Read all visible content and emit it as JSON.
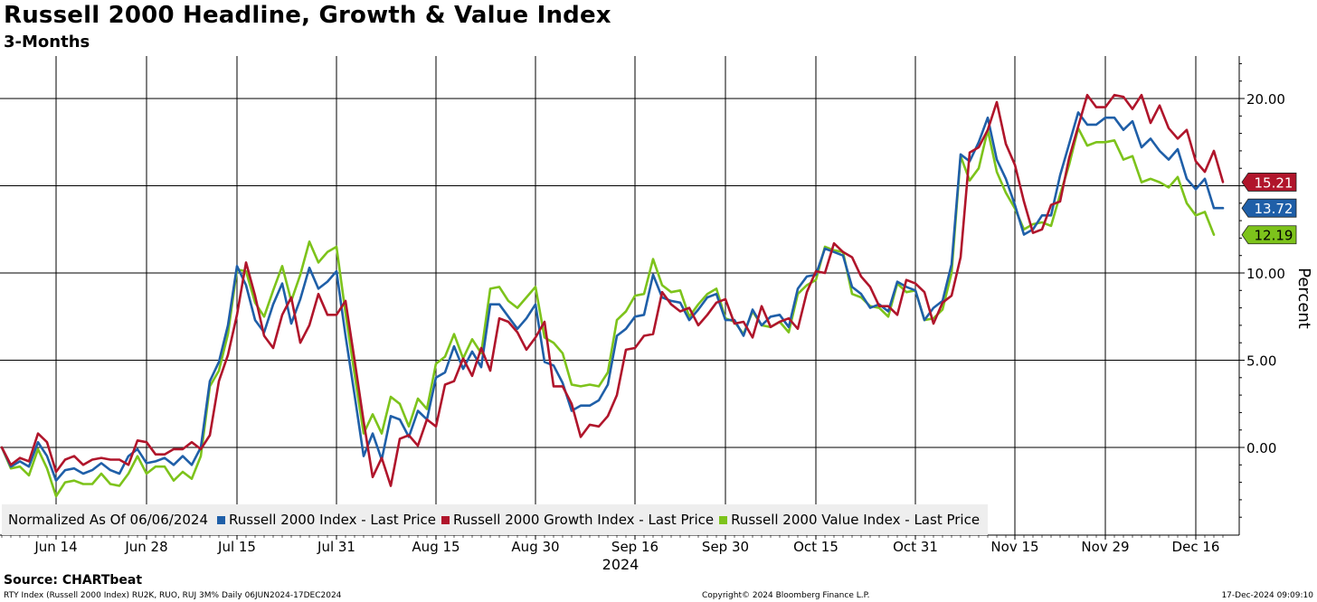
{
  "header": {
    "title": "Russell 2000 Headline, Growth & Value Index",
    "subtitle": "3-Months"
  },
  "footer": {
    "source": "Source: CHARTbeat",
    "ticker_line": "RTY Index (Russell 2000 Index) RU2K, RUO, RUJ 3M% Daily 06JUN2024-17DEC2024",
    "copyright": "Copyright© 2024 Bloomberg Finance L.P.",
    "timestamp": "17-Dec-2024 09:09:10"
  },
  "legend": {
    "title": "Normalized As Of 06/06/2024"
  },
  "chart_data": {
    "type": "line",
    "title": "Russell 2000 Headline, Growth & Value Index",
    "subtitle": "3-Months",
    "ylabel": "Percent",
    "xlabel": "2024",
    "ylim": [
      -5,
      22.2
    ],
    "yticks": [
      0,
      5,
      10,
      15,
      20
    ],
    "ytick_labels": [
      "0.00",
      "5.00",
      "10.00",
      "15.00",
      "20.00"
    ],
    "xticks": [
      "Jun 14",
      "Jun 28",
      "Jul 15",
      "Jul 31",
      "Aug 15",
      "Aug 30",
      "Sep 16",
      "Sep 30",
      "Oct 15",
      "Oct 31",
      "Nov 15",
      "Nov 29",
      "Dec 16"
    ],
    "xtick_index": [
      6,
      16,
      26,
      37,
      48,
      59,
      70,
      80,
      90,
      101,
      112,
      122,
      132
    ],
    "year_label": "2024",
    "grid": true,
    "legend_position": "bottom-left",
    "series": [
      {
        "name": "Russell 2000 Index - Last Price",
        "color": "#1f5fa8",
        "last_label": "13.72",
        "values": [
          0.0,
          -1.1,
          -0.8,
          -1.1,
          0.3,
          -0.5,
          -1.9,
          -1.3,
          -1.2,
          -1.5,
          -1.3,
          -0.9,
          -1.3,
          -1.5,
          -0.5,
          -0.1,
          -0.9,
          -0.8,
          -0.6,
          -1.0,
          -0.5,
          -1.0,
          0.0,
          3.8,
          4.9,
          7.0,
          10.4,
          9.3,
          7.3,
          6.6,
          8.2,
          9.4,
          7.1,
          8.5,
          10.3,
          9.1,
          9.5,
          10.1,
          6.4,
          3.0,
          -0.5,
          0.8,
          -0.7,
          1.8,
          1.6,
          0.6,
          2.1,
          1.6,
          4.0,
          4.3,
          5.8,
          4.5,
          5.5,
          4.6,
          8.2,
          8.2,
          7.5,
          6.8,
          7.4,
          8.2,
          4.9,
          4.7,
          3.7,
          2.1,
          2.4,
          2.4,
          2.7,
          3.6,
          6.4,
          6.8,
          7.5,
          7.6,
          9.9,
          8.6,
          8.4,
          8.3,
          7.3,
          7.9,
          8.6,
          8.8,
          7.3,
          7.3,
          6.4,
          7.9,
          7.0,
          7.5,
          7.6,
          6.9,
          9.1,
          9.8,
          9.9,
          11.4,
          11.2,
          11.0,
          9.2,
          8.8,
          8.0,
          8.2,
          7.8,
          9.5,
          9.2,
          9.0,
          7.3,
          8.0,
          8.4,
          10.5,
          16.8,
          16.4,
          17.5,
          18.9,
          16.5,
          15.4,
          13.9,
          12.2,
          12.5,
          13.3,
          13.3,
          15.6,
          17.4,
          19.2,
          18.5,
          18.5,
          18.9,
          18.9,
          18.2,
          18.7,
          17.2,
          17.7,
          17.0,
          16.5,
          17.1,
          15.4,
          14.8,
          15.4,
          13.72,
          13.72
        ]
      },
      {
        "name": "Russell 2000 Growth Index - Last Price",
        "color": "#b0152b",
        "last_label": "15.21",
        "values": [
          0.0,
          -1.0,
          -0.6,
          -0.8,
          0.8,
          0.3,
          -1.4,
          -0.7,
          -0.5,
          -1.0,
          -0.7,
          -0.6,
          -0.7,
          -0.7,
          -1.0,
          0.4,
          0.3,
          -0.4,
          -0.4,
          -0.1,
          -0.1,
          0.3,
          -0.1,
          0.7,
          3.8,
          5.3,
          7.6,
          10.6,
          8.7,
          6.4,
          5.7,
          7.6,
          8.6,
          6.0,
          7.0,
          8.8,
          7.6,
          7.6,
          8.4,
          5.0,
          1.5,
          -1.7,
          -0.6,
          -2.2,
          0.5,
          0.7,
          0.1,
          1.6,
          1.2,
          3.6,
          3.8,
          5.1,
          4.1,
          5.7,
          4.4,
          7.4,
          7.2,
          6.6,
          5.6,
          6.3,
          7.2,
          3.5,
          3.5,
          2.5,
          0.6,
          1.3,
          1.2,
          1.8,
          3.0,
          5.6,
          5.7,
          6.4,
          6.5,
          8.9,
          8.2,
          7.8,
          8.0,
          7.0,
          7.6,
          8.3,
          8.5,
          7.1,
          7.2,
          6.3,
          8.1,
          6.9,
          7.2,
          7.4,
          6.8,
          8.9,
          10.1,
          10.0,
          11.7,
          11.2,
          10.9,
          9.8,
          9.2,
          8.1,
          8.1,
          7.6,
          9.6,
          9.4,
          8.9,
          7.1,
          8.3,
          8.7,
          10.9,
          16.9,
          17.2,
          18.2,
          19.8,
          17.4,
          16.2,
          14.1,
          12.3,
          12.5,
          13.9,
          14.1,
          16.6,
          18.4,
          20.2,
          19.5,
          19.5,
          20.2,
          20.1,
          19.4,
          20.2,
          18.6,
          19.6,
          18.3,
          17.7,
          18.2,
          16.4,
          15.8,
          17.0,
          15.21
        ]
      },
      {
        "name": "Russell 2000 Value Index - Last Price",
        "color": "#7dc31b",
        "last_label": "12.19",
        "values": [
          0.0,
          -1.2,
          -1.1,
          -1.6,
          -0.1,
          -1.2,
          -2.8,
          -2.0,
          -1.9,
          -2.1,
          -2.1,
          -1.5,
          -2.1,
          -2.2,
          -1.5,
          -0.5,
          -1.5,
          -1.1,
          -1.1,
          -1.9,
          -1.4,
          -1.8,
          -0.5,
          3.5,
          4.4,
          6.5,
          10.2,
          10.1,
          8.3,
          7.5,
          9.0,
          10.4,
          8.4,
          9.9,
          11.8,
          10.6,
          11.2,
          11.5,
          7.7,
          4.2,
          0.8,
          1.9,
          0.8,
          2.9,
          2.5,
          1.2,
          2.8,
          2.2,
          4.8,
          5.2,
          6.5,
          5.1,
          6.2,
          5.4,
          9.1,
          9.2,
          8.4,
          8.0,
          8.6,
          9.2,
          6.3,
          6.0,
          5.4,
          3.6,
          3.5,
          3.6,
          3.5,
          4.3,
          7.3,
          7.8,
          8.7,
          8.8,
          10.8,
          9.3,
          8.9,
          9.0,
          7.5,
          8.2,
          8.8,
          9.1,
          7.4,
          7.2,
          6.5,
          7.8,
          7.0,
          6.9,
          7.2,
          6.6,
          8.8,
          9.3,
          9.6,
          11.5,
          11.3,
          11.2,
          8.8,
          8.6,
          8.1,
          8.0,
          7.5,
          9.4,
          8.9,
          9.0,
          7.3,
          7.4,
          7.9,
          10.0,
          16.7,
          15.3,
          16.0,
          18.2,
          15.8,
          14.6,
          13.7,
          12.5,
          12.8,
          12.9,
          12.7,
          14.5,
          16.2,
          18.3,
          17.3,
          17.5,
          17.5,
          17.6,
          16.5,
          16.7,
          15.2,
          15.4,
          15.2,
          14.9,
          15.5,
          14.0,
          13.3,
          13.5,
          12.19
        ]
      }
    ]
  }
}
